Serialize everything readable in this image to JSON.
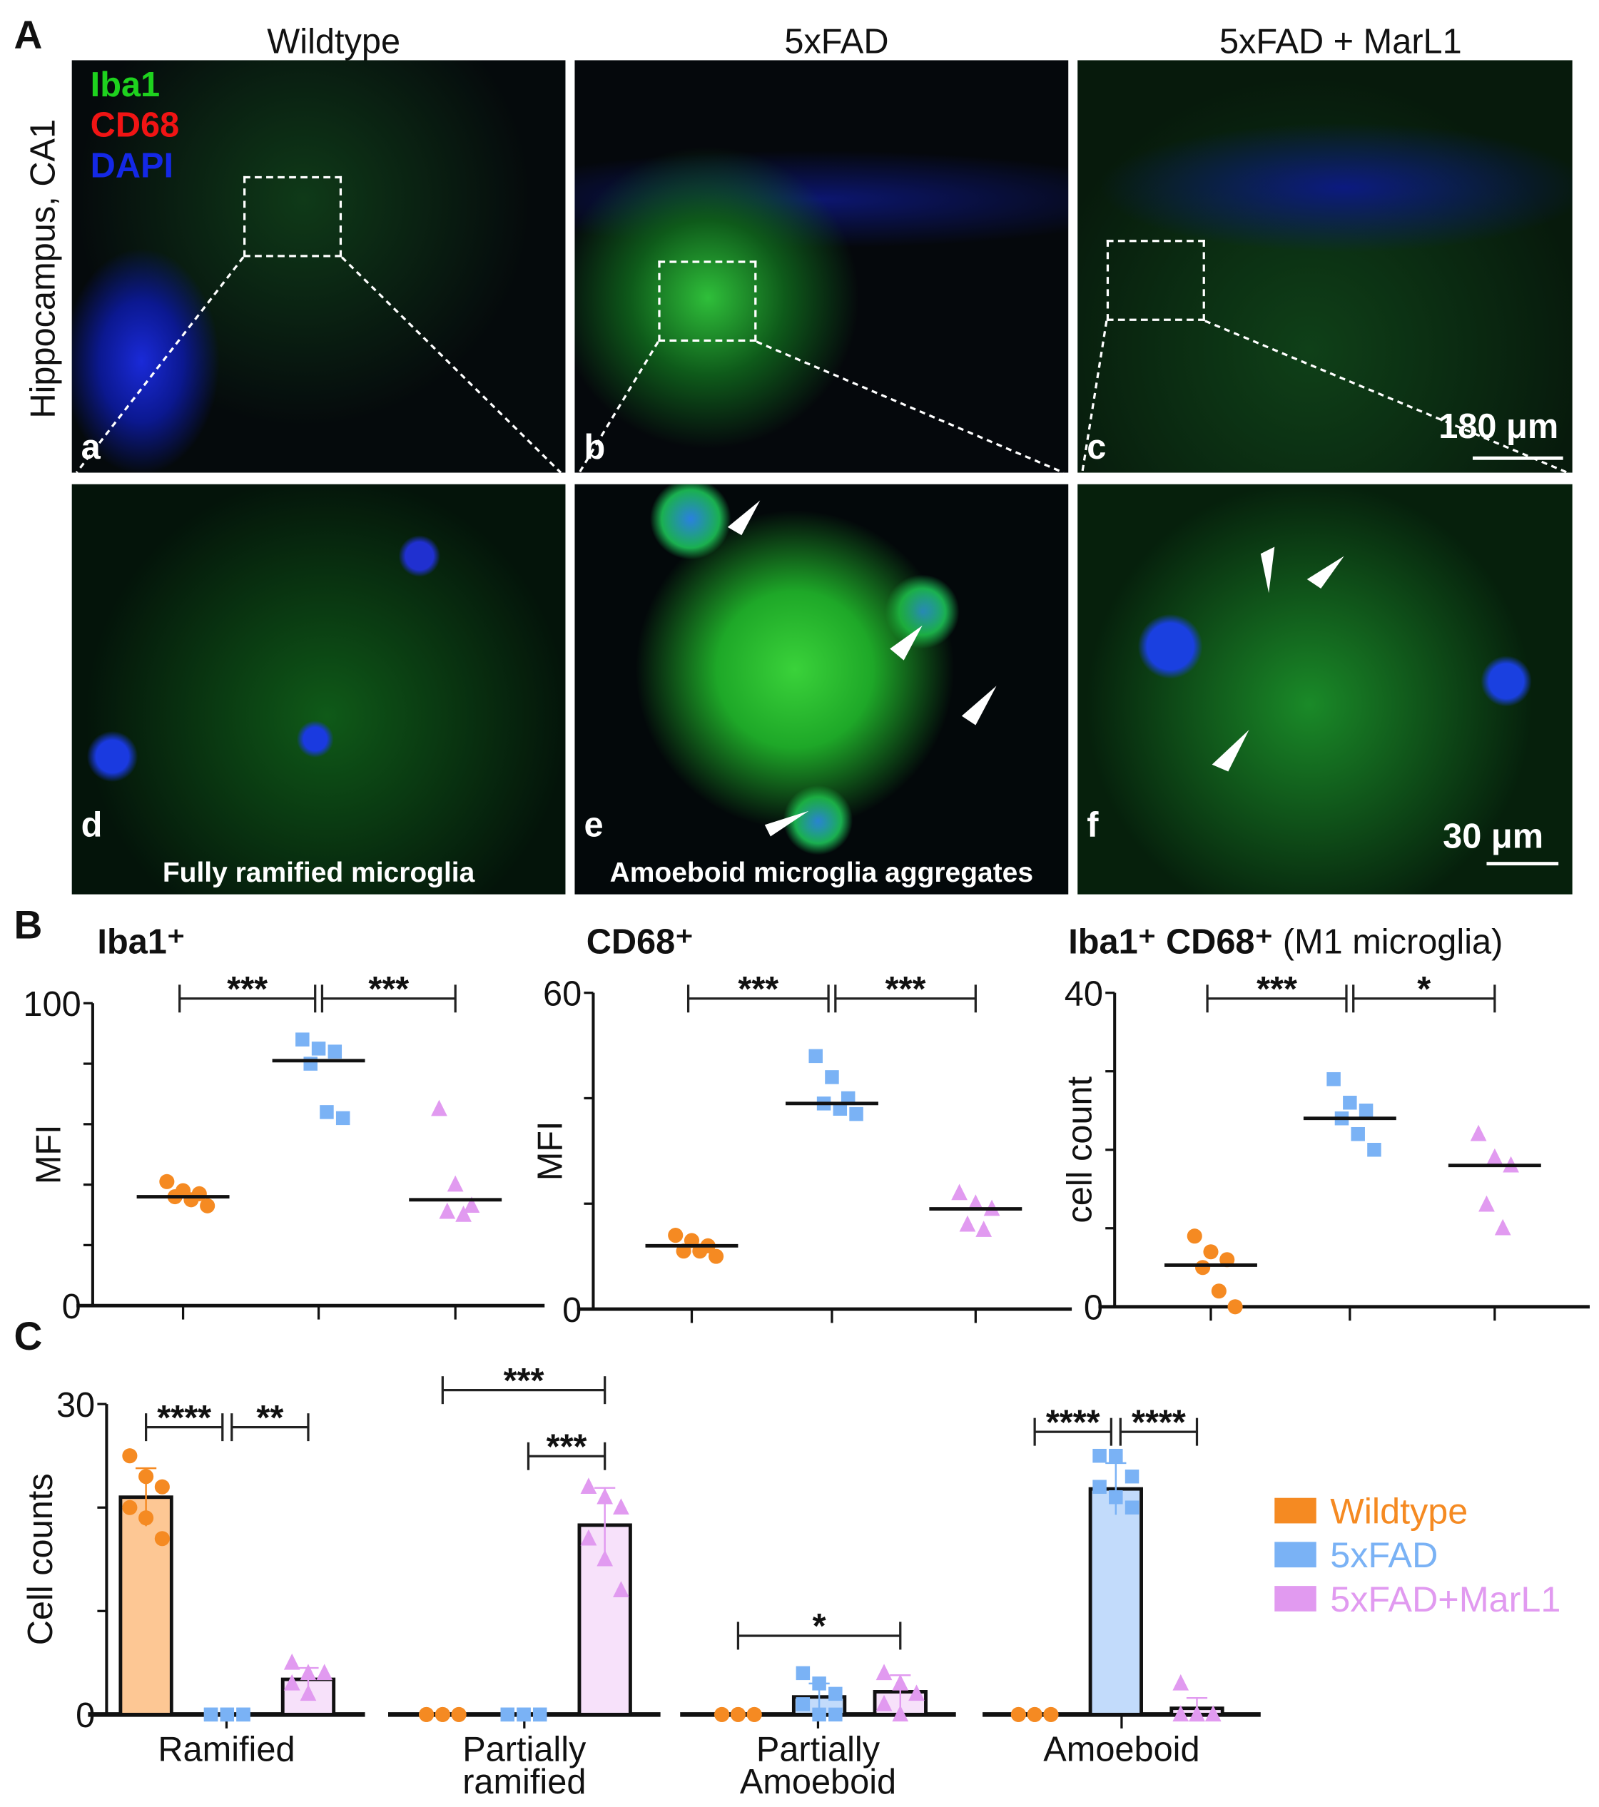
{
  "panel_labels": {
    "A": "A",
    "B": "B",
    "C": "C"
  },
  "panel_a": {
    "column_titles": [
      "Wildtype",
      "5xFAD",
      "5xFAD + MarL1"
    ],
    "row_label": "Hippocampus, CA1",
    "channels": [
      {
        "label": "Iba1",
        "color": "#1ED21E"
      },
      {
        "label": "CD68",
        "color": "#F01414"
      },
      {
        "label": "DAPI",
        "color": "#1428E6"
      }
    ],
    "sub_labels": [
      "a",
      "b",
      "c",
      "d",
      "e",
      "f"
    ],
    "captions": {
      "d": "Fully ramified microglia",
      "e": "Amoeboid microglia aggregates"
    },
    "scale_bars": {
      "top": "180 μm",
      "bottom": "30 μm"
    }
  },
  "colors": {
    "Wildtype": "#F58A22",
    "5xFAD": "#7AB2F5",
    "5xFAD+MarL1": "#E19AF0"
  },
  "chart_data": [
    {
      "type": "scatter",
      "title": "Iba1⁺",
      "ylabel": "MFI",
      "ylim": [
        0,
        100
      ],
      "yticks_labeled": [
        0,
        100
      ],
      "ytick_step": 20,
      "groups": [
        "Wildtype",
        "5xFAD",
        "5xFAD+MarL1"
      ],
      "points": [
        [
          41,
          38,
          37,
          36,
          35,
          33
        ],
        [
          88,
          85,
          84,
          80,
          64,
          62
        ],
        [
          65,
          40,
          33,
          31,
          30
        ]
      ],
      "medians": [
        36,
        81,
        35
      ],
      "significance": [
        {
          "from": 0,
          "to": 1,
          "label": "***"
        },
        {
          "from": 1,
          "to": 2,
          "label": "***"
        }
      ]
    },
    {
      "type": "scatter",
      "title": "CD68⁺",
      "ylabel": "MFI",
      "ylim": [
        0,
        60
      ],
      "yticks_labeled": [
        0,
        60
      ],
      "ytick_step": 20,
      "groups": [
        "Wildtype",
        "5xFAD",
        "5xFAD+MarL1"
      ],
      "points": [
        [
          14,
          13,
          12,
          11,
          11,
          10
        ],
        [
          48,
          44,
          40,
          39,
          38,
          37
        ],
        [
          22,
          20,
          19,
          16,
          15
        ]
      ],
      "medians": [
        12,
        39,
        19
      ],
      "significance": [
        {
          "from": 0,
          "to": 1,
          "label": "***"
        },
        {
          "from": 1,
          "to": 2,
          "label": "***"
        }
      ]
    },
    {
      "type": "scatter",
      "title": "Iba1⁺ CD68⁺",
      "title_suffix": "(M1 microglia)",
      "ylabel": "cell count",
      "ylim": [
        0,
        40
      ],
      "yticks_labeled": [
        0,
        40
      ],
      "ytick_step": 10,
      "groups": [
        "Wildtype",
        "5xFAD",
        "5xFAD+MarL1"
      ],
      "points": [
        [
          9,
          7,
          6,
          5,
          2,
          0
        ],
        [
          29,
          26,
          25,
          24,
          22,
          20
        ],
        [
          22,
          19,
          18,
          13,
          10
        ]
      ],
      "medians": [
        5.3,
        24,
        18
      ],
      "significance": [
        {
          "from": 0,
          "to": 1,
          "label": "***"
        },
        {
          "from": 1,
          "to": 2,
          "label": "*"
        }
      ]
    },
    {
      "type": "bar",
      "ylabel": "Cell counts",
      "ylim": [
        0,
        30
      ],
      "yticks_labeled": [
        0,
        30
      ],
      "ytick_step": 10,
      "categories": [
        "Ramified",
        "Partially\nramified",
        "Partially\nAmoeboid",
        "Amoeboid"
      ],
      "legend": {
        "position": "right",
        "entries": [
          "Wildtype",
          "5xFAD",
          "5xFAD+MarL1"
        ]
      },
      "series": [
        {
          "name": "Wildtype",
          "values": [
            21,
            0,
            0,
            0
          ],
          "errors": [
            2.8,
            0,
            0,
            0
          ],
          "points": [
            [
              25,
              23,
              22,
              20,
              19,
              17
            ],
            [
              0,
              0,
              0,
              0,
              0,
              0
            ],
            [
              0,
              0,
              0,
              0,
              0,
              0
            ],
            [
              0,
              0,
              0,
              0,
              0,
              0
            ]
          ]
        },
        {
          "name": "5xFAD",
          "values": [
            0,
            0,
            1.7,
            21.8
          ],
          "errors": [
            0,
            0,
            1.3,
            2.5
          ],
          "points": [
            [
              0,
              0,
              0,
              0,
              0,
              0
            ],
            [
              0,
              0,
              0,
              0,
              0,
              0
            ],
            [
              4,
              3,
              2,
              1,
              0,
              0
            ],
            [
              25,
              25,
              23,
              22,
              21,
              20
            ]
          ]
        },
        {
          "name": "5xFAD+MarL1",
          "values": [
            3.4,
            18.3,
            2.2,
            0.6
          ],
          "errors": [
            1.1,
            3.6,
            1.6,
            1.0
          ],
          "points": [
            [
              5,
              4,
              4,
              3,
              2
            ],
            [
              22,
              21,
              20,
              17,
              15,
              12
            ],
            [
              4,
              3,
              2,
              1,
              0
            ],
            [
              3,
              0,
              0,
              0,
              0
            ]
          ]
        }
      ],
      "significance": [
        {
          "category": 0,
          "from": 0,
          "to": 1,
          "label": "****"
        },
        {
          "category": 0,
          "from": 1,
          "to": 2,
          "label": "**"
        },
        {
          "category": 1,
          "from": 0,
          "to": 2,
          "label": "***"
        },
        {
          "category": 1,
          "from": 1,
          "to": 2,
          "label": "***"
        },
        {
          "category": 2,
          "from": 0,
          "to": 2,
          "label": "*"
        },
        {
          "category": 3,
          "from": 0,
          "to": 1,
          "label": "****"
        },
        {
          "category": 3,
          "from": 1,
          "to": 2,
          "label": "****"
        }
      ]
    }
  ]
}
